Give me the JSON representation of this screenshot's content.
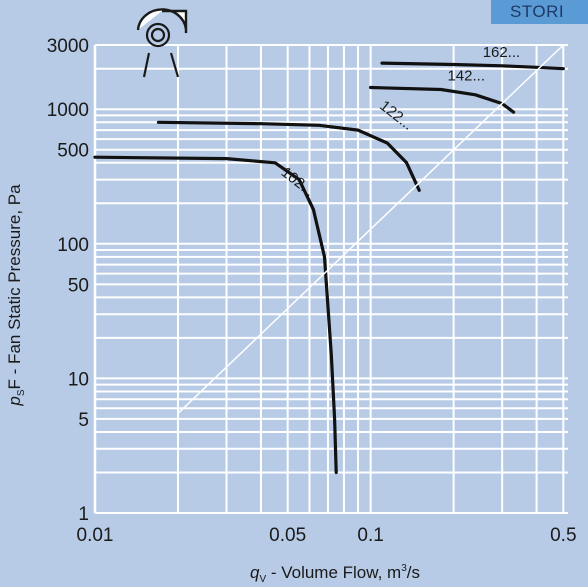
{
  "badge_text": "STORI",
  "chart_data": {
    "type": "line",
    "title": "",
    "xlabel": "q_v - Volume Flow, m³/s",
    "xlabel_parts": {
      "symbol": "q",
      "sub": "V",
      "rest": " - Volume Flow, m",
      "sup": "3",
      "tail": "/s"
    },
    "ylabel": "p_sF - Fan Static Pressure, Pa",
    "ylabel_parts": {
      "symbol": "p",
      "sub": "S",
      "rest": "F - Fan Static Pressure, Pa"
    },
    "x_scale": "log",
    "y_scale": "log",
    "xlim": [
      0.01,
      0.52
    ],
    "ylim": [
      1,
      3000
    ],
    "x_ticks": [
      "0.01",
      "0.05",
      "0.1",
      "0.5"
    ],
    "y_ticks": [
      "1",
      "5",
      "10",
      "50",
      "100",
      "500",
      "1000",
      "3000"
    ],
    "grid": true,
    "series": [
      {
        "name": "102...",
        "points": [
          [
            0.01,
            440
          ],
          [
            0.03,
            430
          ],
          [
            0.045,
            400
          ],
          [
            0.055,
            300
          ],
          [
            0.062,
            180
          ],
          [
            0.068,
            80
          ],
          [
            0.072,
            15
          ],
          [
            0.074,
            5
          ],
          [
            0.075,
            2
          ]
        ]
      },
      {
        "name": "122...",
        "points": [
          [
            0.017,
            800
          ],
          [
            0.04,
            780
          ],
          [
            0.065,
            760
          ],
          [
            0.09,
            700
          ],
          [
            0.115,
            560
          ],
          [
            0.135,
            400
          ],
          [
            0.15,
            250
          ]
        ]
      },
      {
        "name": "142...",
        "points": [
          [
            0.1,
            1450
          ],
          [
            0.18,
            1400
          ],
          [
            0.24,
            1280
          ],
          [
            0.3,
            1100
          ],
          [
            0.33,
            950
          ]
        ]
      },
      {
        "name": "162...",
        "points": [
          [
            0.11,
            2200
          ],
          [
            0.2,
            2150
          ],
          [
            0.3,
            2100
          ],
          [
            0.4,
            2050
          ],
          [
            0.5,
            2000
          ]
        ]
      },
      {
        "name": "",
        "points": [
          [
            0.02,
            5.5
          ],
          [
            0.5,
            3000
          ]
        ]
      }
    ]
  }
}
